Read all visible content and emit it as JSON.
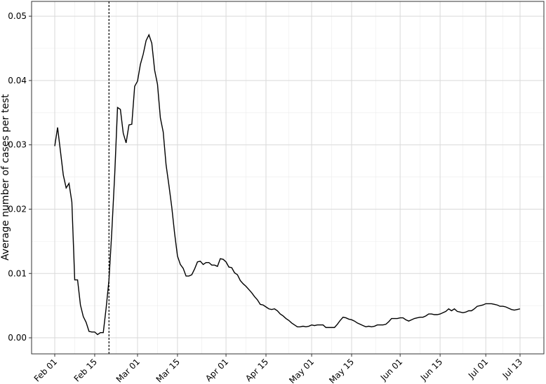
{
  "chart_data": {
    "type": "line",
    "y_label": "Average number of cases per test",
    "x": [
      "Feb 01",
      "Feb 02",
      "Feb 03",
      "Feb 04",
      "Feb 05",
      "Feb 06",
      "Feb 07",
      "Feb 08",
      "Feb 09",
      "Feb 10",
      "Feb 11",
      "Feb 12",
      "Feb 13",
      "Feb 14",
      "Feb 15",
      "Feb 16",
      "Feb 17",
      "Feb 18",
      "Feb 19",
      "Feb 20",
      "Feb 21",
      "Feb 22",
      "Feb 23",
      "Feb 24",
      "Feb 25",
      "Feb 26",
      "Feb 27",
      "Feb 28",
      "Feb 29",
      "Mar 01",
      "Mar 02",
      "Mar 03",
      "Mar 04",
      "Mar 05",
      "Mar 06",
      "Mar 07",
      "Mar 08",
      "Mar 09",
      "Mar 10",
      "Mar 11",
      "Mar 12",
      "Mar 13",
      "Mar 14",
      "Mar 15",
      "Mar 16",
      "Mar 17",
      "Mar 18",
      "Mar 19",
      "Mar 20",
      "Mar 21",
      "Mar 22",
      "Mar 23",
      "Mar 24",
      "Mar 25",
      "Mar 26",
      "Mar 27",
      "Mar 28",
      "Mar 29",
      "Mar 30",
      "Mar 31",
      "Apr 01",
      "Apr 02",
      "Apr 03",
      "Apr 04",
      "Apr 05",
      "Apr 06",
      "Apr 07",
      "Apr 08",
      "Apr 09",
      "Apr 10",
      "Apr 11",
      "Apr 12",
      "Apr 13",
      "Apr 14",
      "Apr 15",
      "Apr 16",
      "Apr 17",
      "Apr 18",
      "Apr 19",
      "Apr 20",
      "Apr 21",
      "Apr 22",
      "Apr 23",
      "Apr 24",
      "Apr 25",
      "Apr 26",
      "Apr 27",
      "Apr 28",
      "Apr 29",
      "Apr 30",
      "May 01",
      "May 02",
      "May 03",
      "May 04",
      "May 05",
      "May 06",
      "May 07",
      "May 08",
      "May 09",
      "May 10",
      "May 11",
      "May 12",
      "May 13",
      "May 14",
      "May 15",
      "May 16",
      "May 17",
      "May 18",
      "May 19",
      "May 20",
      "May 21",
      "May 22",
      "May 23",
      "May 24",
      "May 25",
      "May 26",
      "May 27",
      "May 28",
      "May 29",
      "May 30",
      "May 31",
      "Jun 01",
      "Jun 02",
      "Jun 03",
      "Jun 04",
      "Jun 05",
      "Jun 06",
      "Jun 07",
      "Jun 08",
      "Jun 09",
      "Jun 10",
      "Jun 11",
      "Jun 12",
      "Jun 13",
      "Jun 14",
      "Jun 15",
      "Jun 16",
      "Jun 17",
      "Jun 18",
      "Jun 19",
      "Jun 20",
      "Jun 21",
      "Jun 22",
      "Jun 23",
      "Jun 24",
      "Jun 25",
      "Jun 26",
      "Jun 27",
      "Jun 28",
      "Jun 29",
      "Jun 30",
      "Jul 01",
      "Jul 02",
      "Jul 03",
      "Jul 04",
      "Jul 05",
      "Jul 06",
      "Jul 07",
      "Jul 08",
      "Jul 09",
      "Jul 10",
      "Jul 11",
      "Jul 12",
      "Jul 13"
    ],
    "values": [
      0.0298,
      0.0327,
      0.029,
      0.0253,
      0.0233,
      0.024,
      0.0211,
      0.009,
      0.009,
      0.0051,
      0.0033,
      0.0024,
      0.001,
      0.0009,
      0.0009,
      0.0005,
      0.0008,
      0.0008,
      0.0046,
      0.009,
      0.0166,
      0.0253,
      0.0358,
      0.0355,
      0.0318,
      0.0303,
      0.0331,
      0.0332,
      0.0391,
      0.0399,
      0.0425,
      0.0441,
      0.0462,
      0.0471,
      0.0458,
      0.0416,
      0.0394,
      0.0342,
      0.032,
      0.0269,
      0.0237,
      0.0203,
      0.0162,
      0.0127,
      0.0114,
      0.0108,
      0.0096,
      0.0096,
      0.0098,
      0.0107,
      0.0118,
      0.0119,
      0.0114,
      0.0117,
      0.0117,
      0.0113,
      0.0113,
      0.0111,
      0.0123,
      0.0122,
      0.0118,
      0.011,
      0.0109,
      0.0101,
      0.0098,
      0.0089,
      0.0084,
      0.008,
      0.0075,
      0.007,
      0.0064,
      0.0059,
      0.0052,
      0.0051,
      0.0048,
      0.0045,
      0.0044,
      0.0045,
      0.0042,
      0.0037,
      0.0034,
      0.003,
      0.0027,
      0.0023,
      0.002,
      0.0017,
      0.0017,
      0.0018,
      0.0017,
      0.0018,
      0.002,
      0.0019,
      0.002,
      0.002,
      0.002,
      0.0016,
      0.0016,
      0.0016,
      0.0016,
      0.0021,
      0.0027,
      0.0032,
      0.0031,
      0.0029,
      0.0028,
      0.0026,
      0.0023,
      0.0021,
      0.0019,
      0.0017,
      0.0018,
      0.0017,
      0.0018,
      0.002,
      0.002,
      0.002,
      0.0021,
      0.0025,
      0.003,
      0.003,
      0.003,
      0.0031,
      0.0031,
      0.0028,
      0.0026,
      0.0028,
      0.003,
      0.0031,
      0.0032,
      0.0032,
      0.0034,
      0.0037,
      0.0037,
      0.0036,
      0.0036,
      0.0037,
      0.0039,
      0.0041,
      0.0045,
      0.0042,
      0.0045,
      0.0041,
      0.004,
      0.0039,
      0.004,
      0.0042,
      0.0042,
      0.0045,
      0.0049,
      0.005,
      0.0051,
      0.0053,
      0.0053,
      0.0053,
      0.0052,
      0.0051,
      0.0049,
      0.0049,
      0.0048,
      0.0046,
      0.0044,
      0.0043,
      0.0044,
      0.0045
    ],
    "color": "#000000",
    "xticks": [
      "Feb 01",
      "Feb 15",
      "Mar 01",
      "Mar 15",
      "Apr 01",
      "Apr 15",
      "May 01",
      "May 15",
      "Jun 01",
      "Jun 15",
      "Jul 01",
      "Jul 13"
    ],
    "ylim": [
      -0.0025,
      0.0523
    ],
    "yticks": [
      {
        "value": 0,
        "label": "0.00"
      },
      0.01,
      0.02,
      0.03,
      0.04,
      0.05
    ],
    "vline": "Feb 20",
    "grid": true
  }
}
